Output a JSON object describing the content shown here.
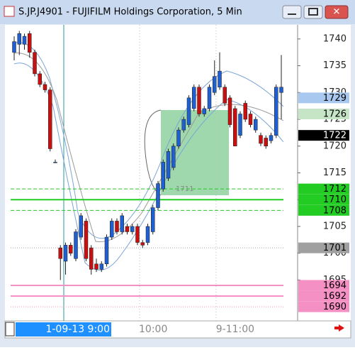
{
  "chart_data": {
    "type": "candlestick",
    "title": "S.JP.J4901 - FUJIFILM Holdings Corporation, 5 Min",
    "categories": [
      null,
      null,
      null,
      null,
      null,
      null,
      null,
      null,
      null,
      "1-09-13  9:00",
      null,
      null,
      null,
      null,
      null,
      null,
      null,
      null,
      null,
      null,
      null,
      null,
      null,
      null,
      "10:00",
      null,
      null,
      null,
      null,
      null,
      null,
      null,
      null,
      null,
      null,
      null,
      null,
      null,
      null,
      "9-11:00",
      null,
      null,
      null,
      null,
      null,
      null,
      null,
      null,
      null,
      null,
      null,
      null,
      null
    ],
    "open": [
      1737.5,
      1739,
      1739,
      1741,
      1737.5,
      1733.5,
      1731.5,
      1730.5,
      1717,
      1701,
      1698.5,
      1701.5,
      1699,
      1703,
      1706,
      1701,
      1698,
      1697,
      1698,
      1703,
      1706,
      1704,
      1705,
      1704,
      1705,
      1702,
      1702,
      1704,
      1708.5,
      1712,
      1714,
      1716,
      1720,
      1723,
      1724,
      1727,
      1731,
      1726,
      1727,
      1730,
      1731,
      1731,
      1729,
      1727,
      1722,
      1728,
      1726,
      1723,
      1722,
      1721.5,
      1721,
      1722,
      1730
    ],
    "high": [
      1740.5,
      1741.5,
      1741,
      1741.5,
      1738,
      1734,
      1732,
      1731,
      1717.5,
      1701.5,
      1702,
      1702,
      1704.5,
      1707.5,
      1706.5,
      1701.5,
      1699,
      1698.5,
      1703.5,
      1706.5,
      1706.5,
      1707.5,
      1705.5,
      1705.5,
      1705.5,
      1702.5,
      1705.5,
      1709,
      1713.5,
      1717.5,
      1719.5,
      1720.5,
      1723.5,
      1725.5,
      1729.5,
      1731.5,
      1731.5,
      1727.5,
      1731.5,
      1736,
      1737.5,
      1731.5,
      1729.5,
      1727.5,
      1726.5,
      1728.5,
      1726.5,
      1725.5,
      1722.5,
      1722,
      1722.5,
      1731.5,
      1737
    ],
    "low": [
      1736,
      1737,
      1738,
      1736.5,
      1733,
      1731,
      1730,
      1719,
      1717,
      1695,
      1696,
      1699.5,
      1698.5,
      1702.5,
      1698.5,
      1696,
      1696.5,
      1696.5,
      1697.5,
      1702.5,
      1703.5,
      1703.5,
      1703.5,
      1703.5,
      1701.5,
      1701,
      1701.5,
      1703.5,
      1708,
      1711.5,
      1713.5,
      1715.5,
      1719.5,
      1722.5,
      1723.5,
      1726.5,
      1725.5,
      1725.5,
      1726.5,
      1729.5,
      1730.5,
      1727.5,
      1723.5,
      1720,
      1721.5,
      1724.5,
      1723.5,
      1722.5,
      1720,
      1719.5,
      1720.5,
      1721.5,
      1725
    ],
    "close": [
      1739.5,
      1741,
      1740.5,
      1737.5,
      1733.5,
      1731.5,
      1730.5,
      1719.5,
      1717,
      1699,
      1701.5,
      1700,
      1704,
      1707,
      1699,
      1697,
      1697,
      1698,
      1703,
      1706,
      1704,
      1707,
      1704,
      1705,
      1702,
      1701.5,
      1705,
      1708.5,
      1713,
      1717,
      1719,
      1720,
      1723,
      1725,
      1729,
      1731,
      1726,
      1727,
      1731,
      1733,
      1734,
      1728,
      1724,
      1720,
      1726,
      1725,
      1724,
      1725,
      1720.5,
      1720,
      1722,
      1731,
      1731
    ],
    "up_color": "#1f5fd0",
    "down_color": "#c81010",
    "ylim": [
      1687.5,
      1742.5
    ],
    "yticks": [
      1695,
      1700,
      1705,
      1710,
      1715,
      1720,
      1725,
      1730,
      1735,
      1740
    ],
    "price_labels": [
      {
        "value": 1729,
        "color": "#a8c8f0",
        "text_color": "#000000"
      },
      {
        "value": 1726,
        "color": "#c6e4c6",
        "text_color": "#000000"
      },
      {
        "value": 1722,
        "color": "#000000",
        "text_color": "#ffffff"
      },
      {
        "value": 1712,
        "color": "#22cc22",
        "text_color": "#000000",
        "line": "dashed"
      },
      {
        "value": 1710,
        "color": "#22cc22",
        "text_color": "#000000",
        "line": "solid"
      },
      {
        "value": 1708,
        "color": "#22cc22",
        "text_color": "#000000",
        "line": "dashed"
      },
      {
        "value": 1701,
        "color": "#a0a0a0",
        "text_color": "#000000",
        "line": "dotted"
      },
      {
        "value": 1694,
        "color": "#f590c4",
        "text_color": "#000000",
        "line": "solid"
      },
      {
        "value": 1692,
        "color": "#f590c4",
        "text_color": "#000000",
        "line": "solid"
      },
      {
        "value": 1690,
        "color": "#f590c4",
        "text_color": "#000000",
        "line": "dotted"
      }
    ],
    "annotation": "1711"
  }
}
